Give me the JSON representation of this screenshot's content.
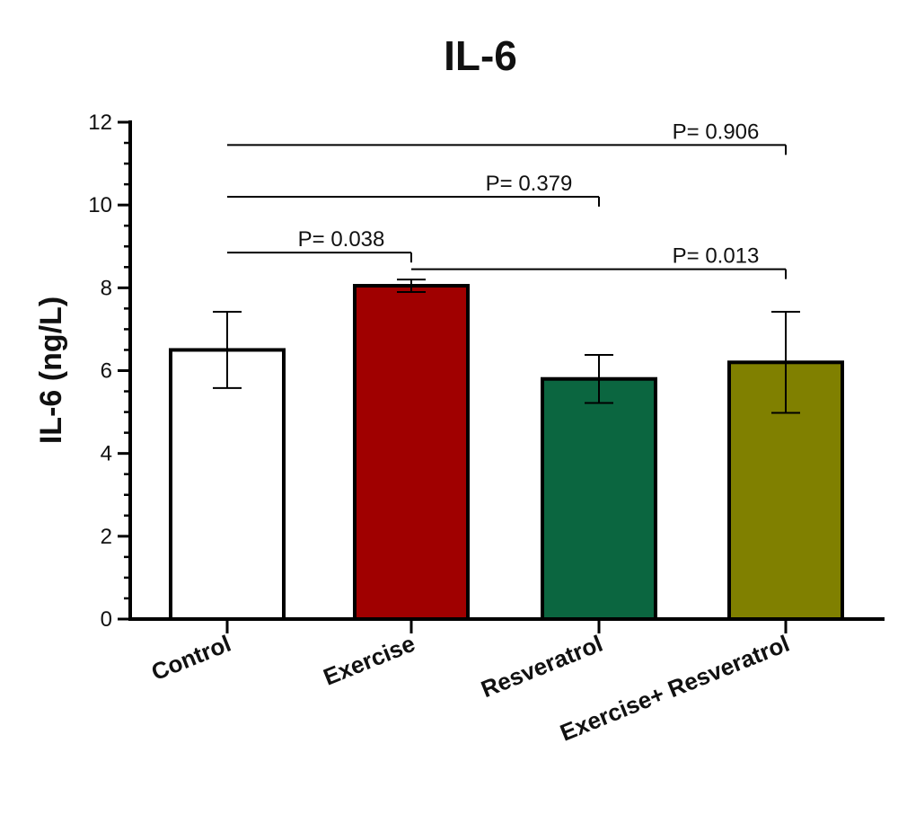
{
  "chart_data": {
    "type": "bar",
    "title": "IL-6",
    "xlabel": "",
    "ylabel": "IL-6  (ng/L)",
    "ylim": [
      0,
      12
    ],
    "yticks": [
      0,
      2,
      4,
      6,
      8,
      10,
      12
    ],
    "categories": [
      "Control",
      "Exercise",
      "Resveratrol",
      "Exercise+ Resveratrol"
    ],
    "values": [
      6.5,
      8.05,
      5.8,
      6.2
    ],
    "errors": [
      0.92,
      0.15,
      0.58,
      1.22
    ],
    "colors": [
      "#ffffff",
      "#a00000",
      "#0b6640",
      "#808000"
    ],
    "grid": false,
    "comparisons": [
      {
        "from": 0,
        "to": 3,
        "label": "P= 0.906",
        "y": 11.45
      },
      {
        "from": 0,
        "to": 2,
        "label": "P= 0.379",
        "y": 10.2
      },
      {
        "from": 0,
        "to": 1,
        "label": "P= 0.038",
        "y": 8.85
      },
      {
        "from": 1,
        "to": 3,
        "label": "P= 0.013",
        "y": 8.45
      }
    ]
  }
}
